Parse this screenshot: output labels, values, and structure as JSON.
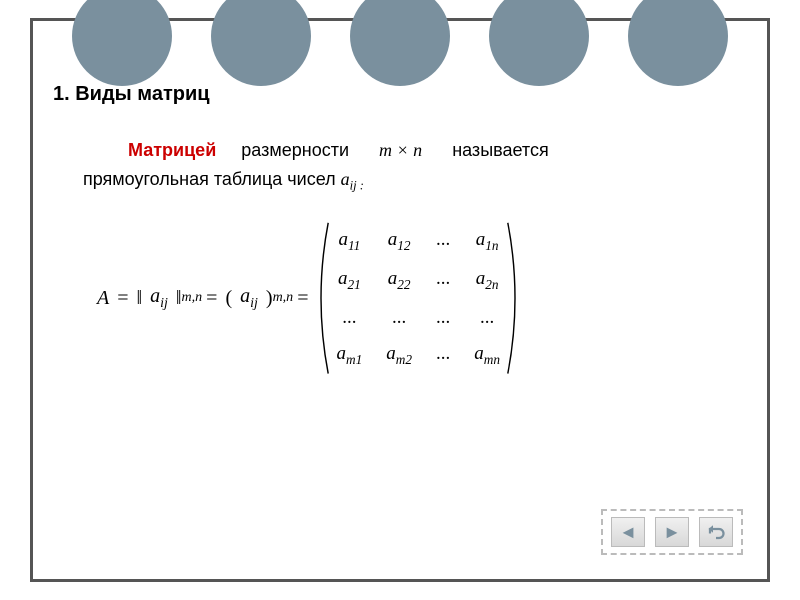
{
  "decor": {
    "circle_color": "#7a909e",
    "circle_count": 5
  },
  "section_title": "1. Виды матриц",
  "text": {
    "matrix_word": "Матрицей",
    "dimension_word": "размерности",
    "mxn": "m × n",
    "called": "называется",
    "rect_table": "прямоугольная таблица чисел",
    "a_ij": "a",
    "a_ij_sub": "ij :"
  },
  "equation": {
    "A": "A",
    "eq": "=",
    "norm_open": "‖",
    "a": "a",
    "ij": "ij",
    "norm_close": "‖",
    "mn": "m,n",
    "open_p": "(",
    "close_p": ")",
    "a2": "a",
    "ij2": "ij",
    "mn2": "m,n"
  },
  "matrix": {
    "rows": [
      [
        {
          "b": "a",
          "s": "11"
        },
        {
          "b": "a",
          "s": "12"
        },
        {
          "b": "...",
          "s": ""
        },
        {
          "b": "a",
          "s": "1n"
        }
      ],
      [
        {
          "b": "a",
          "s": "21"
        },
        {
          "b": "a",
          "s": "22"
        },
        {
          "b": "...",
          "s": ""
        },
        {
          "b": "a",
          "s": "2n"
        }
      ],
      [
        {
          "b": "...",
          "s": ""
        },
        {
          "b": "...",
          "s": ""
        },
        {
          "b": "...",
          "s": ""
        },
        {
          "b": "...",
          "s": ""
        }
      ],
      [
        {
          "b": "a",
          "s": "m1"
        },
        {
          "b": "a",
          "s": "m2"
        },
        {
          "b": "...",
          "s": ""
        },
        {
          "b": "a",
          "s": "mn"
        }
      ]
    ]
  },
  "nav": {
    "prev": "◄",
    "next": "►",
    "return": "↩"
  },
  "colors": {
    "border": "#555555",
    "accent_red": "#cc0000",
    "nav_icon": "#7a909e"
  }
}
